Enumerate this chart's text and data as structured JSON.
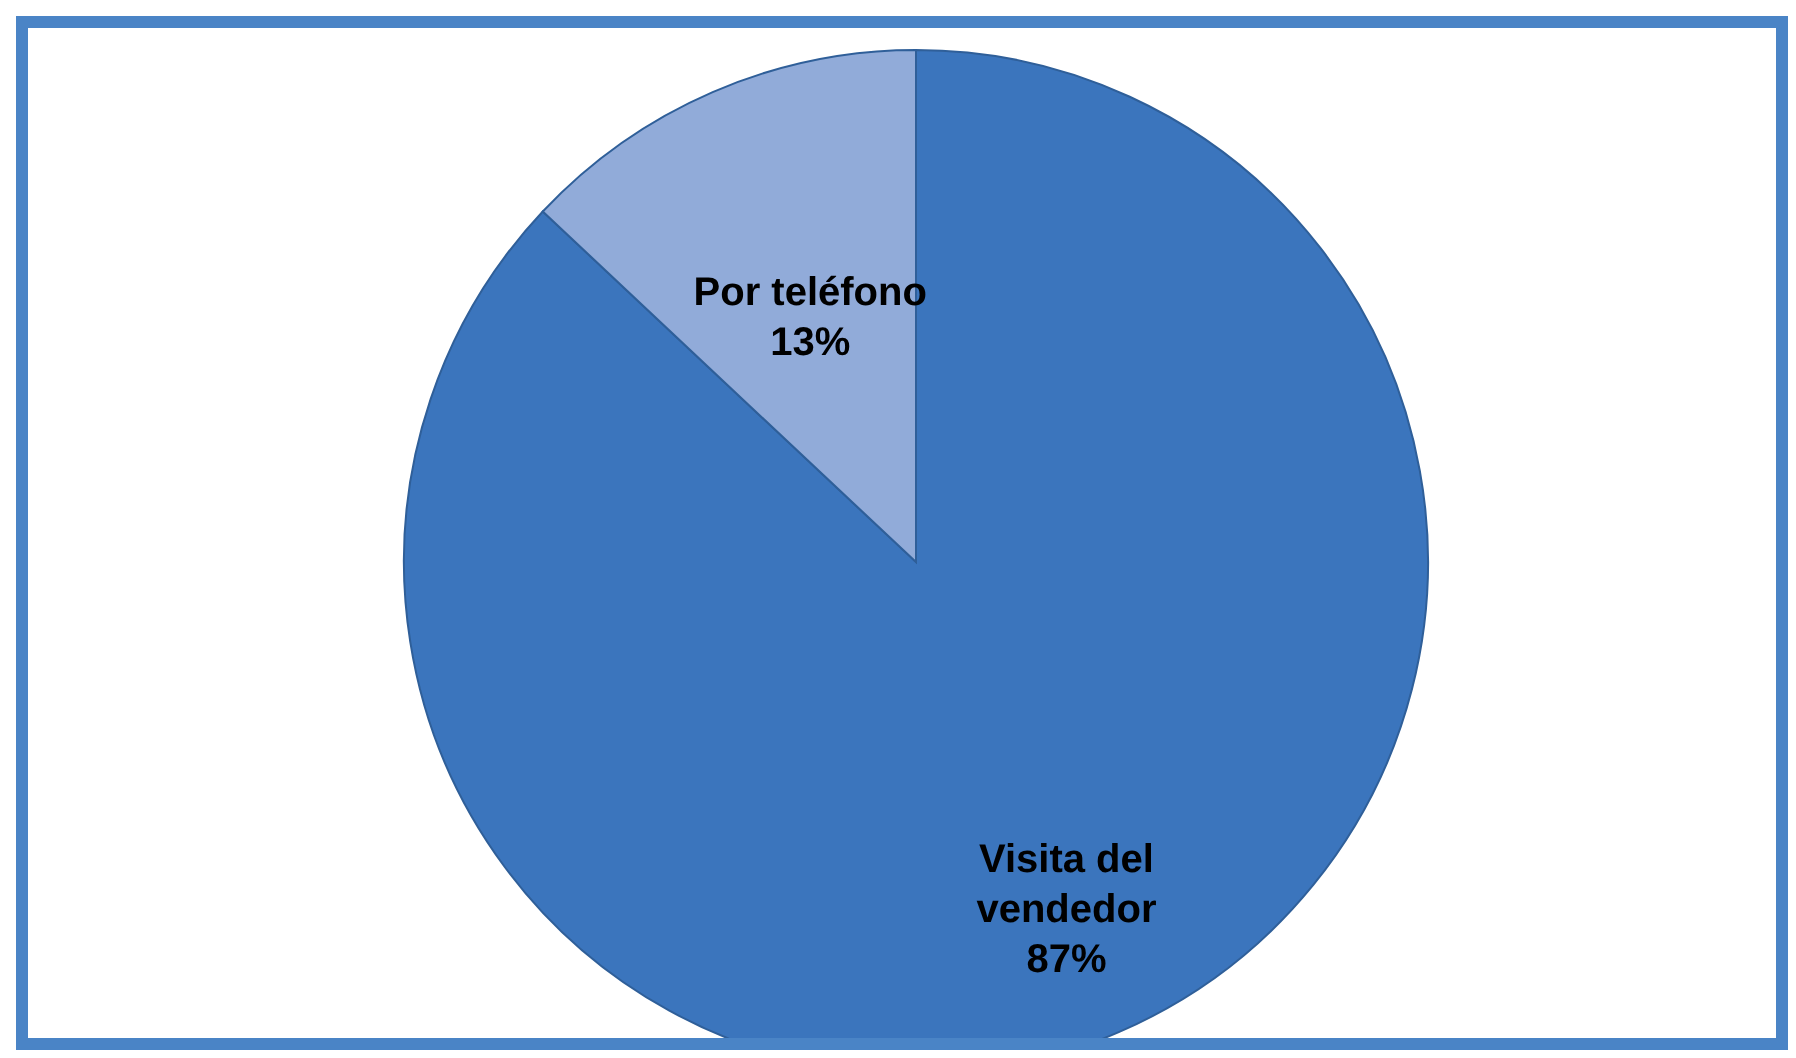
{
  "chart_data": {
    "type": "pie",
    "categories": [
      "Visita del vendedor",
      "Por teléfono"
    ],
    "values": [
      87,
      13
    ],
    "colors": [
      "#3b75bd",
      "#91abd9"
    ],
    "value_labels": [
      "87%",
      "13%"
    ],
    "legend": false
  }
}
